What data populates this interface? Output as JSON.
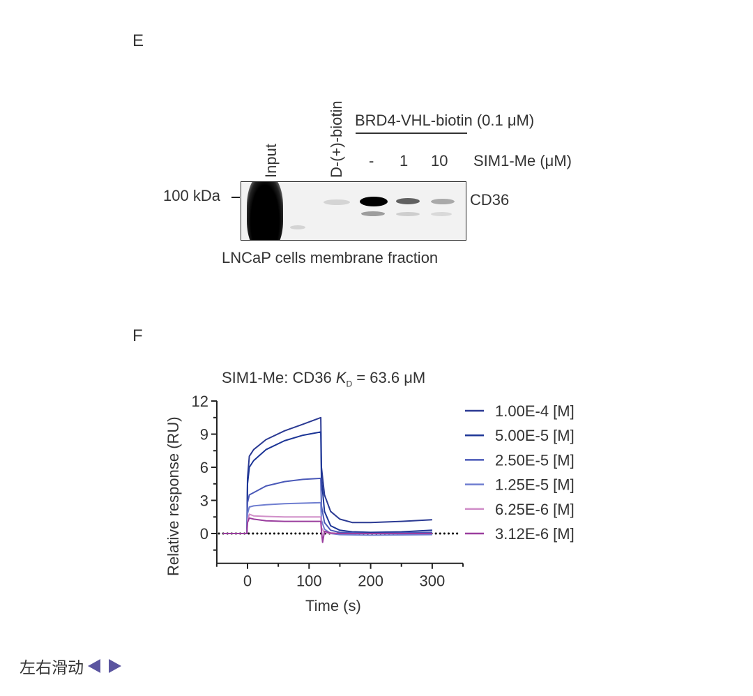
{
  "panel_e": {
    "label": "E",
    "lane_labels": {
      "input": "Input",
      "biotin": "D-(+)-biotin"
    },
    "bracket_label": "BRD4-VHL-biotin (0.1 μM)",
    "conc_labels": [
      "-",
      "1",
      "10"
    ],
    "conc_unit": "SIM1-Me (μM)",
    "marker": "100 kDa",
    "band_label": "CD36",
    "caption": "LNCaP cells membrane fraction"
  },
  "panel_f": {
    "label": "F"
  },
  "chart_data": {
    "type": "line",
    "title": "SIM1-Me: CD36 K_D = 63.6 μM",
    "title_parts": {
      "prefix": "SIM1-Me: CD36 ",
      "k": "K",
      "sub": "D",
      "suffix": " = 63.6 μM"
    },
    "xlabel": "Time (s)",
    "ylabel": "Relative response (RU)",
    "xlim": [
      -50,
      350
    ],
    "ylim": [
      -2.7,
      12
    ],
    "xticks": [
      0,
      100,
      200,
      300
    ],
    "yticks": [
      0,
      3,
      6,
      9,
      12
    ],
    "grid": false,
    "legend_position": "right",
    "reference_line": {
      "y": 0,
      "style": "dotted",
      "color": "#000000"
    },
    "series": [
      {
        "name": "1.00E-4 [M]",
        "color": "#2b3a93",
        "x": [
          -40,
          -1,
          0,
          3,
          10,
          30,
          60,
          90,
          119,
          120,
          125,
          135,
          150,
          170,
          200,
          250,
          300
        ],
        "y": [
          0,
          0,
          5.0,
          7.0,
          7.6,
          8.5,
          9.3,
          9.9,
          10.5,
          6.0,
          3.5,
          2.0,
          1.3,
          1.0,
          1.0,
          1.1,
          1.25
        ]
      },
      {
        "name": "5.00E-5 [M]",
        "color": "#1c3596",
        "x": [
          -40,
          -1,
          0,
          3,
          10,
          30,
          60,
          90,
          119,
          120,
          125,
          135,
          150,
          170,
          200,
          250,
          300
        ],
        "y": [
          0,
          0,
          4.5,
          6.0,
          6.6,
          7.6,
          8.4,
          8.9,
          9.2,
          5.0,
          2.0,
          0.7,
          0.3,
          0.15,
          0.1,
          0.15,
          0.3
        ]
      },
      {
        "name": "2.50E-5 [M]",
        "color": "#4a59b8",
        "x": [
          -40,
          -1,
          0,
          3,
          10,
          30,
          60,
          90,
          119,
          120,
          125,
          135,
          150,
          200,
          300
        ],
        "y": [
          0,
          0,
          2.8,
          3.5,
          3.7,
          4.3,
          4.7,
          4.9,
          5.0,
          2.5,
          1.0,
          0.3,
          0.1,
          0.0,
          0.1
        ]
      },
      {
        "name": "1.25E-5 [M]",
        "color": "#6f7ed0",
        "x": [
          -40,
          -1,
          0,
          3,
          10,
          30,
          60,
          90,
          119,
          120,
          125,
          135,
          150,
          200,
          300
        ],
        "y": [
          0,
          0,
          1.8,
          2.4,
          2.5,
          2.6,
          2.7,
          2.75,
          2.8,
          1.2,
          0.4,
          0.0,
          -0.1,
          -0.15,
          -0.1
        ]
      },
      {
        "name": "6.25E-6 [M]",
        "color": "#d08ec8",
        "x": [
          -40,
          -1,
          0,
          3,
          10,
          30,
          60,
          90,
          119,
          120,
          125,
          135,
          150,
          200,
          300
        ],
        "y": [
          0,
          0,
          1.2,
          1.75,
          1.6,
          1.55,
          1.5,
          1.5,
          1.5,
          0.5,
          0.1,
          0.0,
          0.0,
          0.0,
          0.0
        ]
      },
      {
        "name": "3.12E-6 [M]",
        "color": "#9a3e9e",
        "x": [
          -40,
          -1,
          0,
          3,
          10,
          30,
          60,
          90,
          119,
          120,
          122,
          125,
          135,
          150,
          200,
          300
        ],
        "y": [
          0,
          0,
          1.0,
          1.4,
          1.3,
          1.15,
          1.1,
          1.1,
          1.1,
          0.3,
          -0.8,
          0.2,
          0.05,
          0.0,
          0.0,
          0.0
        ]
      }
    ]
  },
  "nav": {
    "text": "左右滑动",
    "prev_icon": "triangle-left-icon",
    "next_icon": "triangle-right-icon",
    "accent_color": "#5b55a0"
  }
}
